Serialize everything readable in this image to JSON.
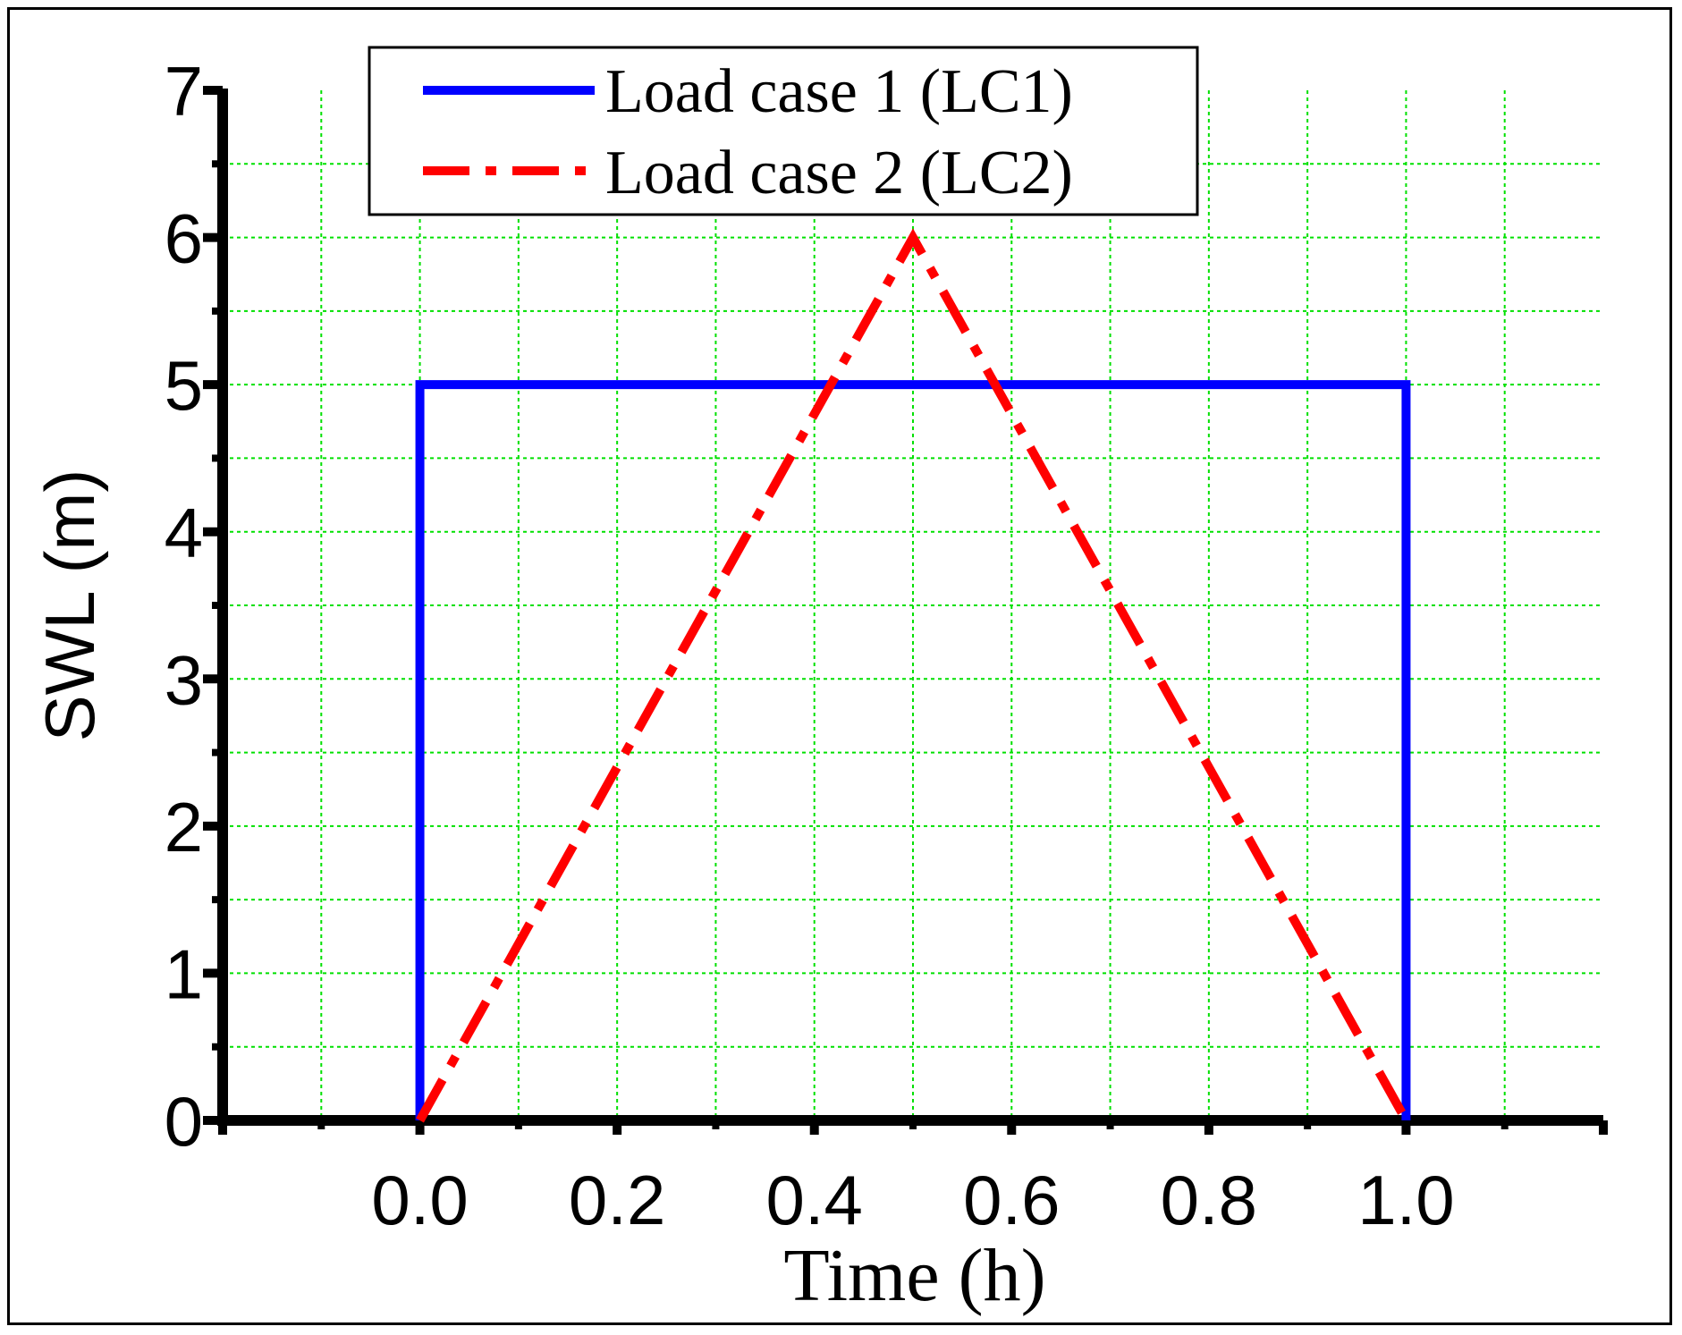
{
  "chart_data": {
    "type": "line",
    "title": "",
    "xlabel": "Time (h)",
    "ylabel": "SWL (m)",
    "xlim": [
      -0.2,
      1.2
    ],
    "ylim": [
      0,
      7
    ],
    "x_ticks": [
      "0.0",
      "0.2",
      "0.4",
      "0.6",
      "0.8",
      "1.0"
    ],
    "y_ticks": [
      "0",
      "1",
      "2",
      "3",
      "4",
      "5",
      "6",
      "7"
    ],
    "grid": true,
    "grid_color": "#00e000",
    "legend_position": "top",
    "series": [
      {
        "name": "Load case 1 (LC1)",
        "color": "#0000ff",
        "style": "solid",
        "x": [
          0.0,
          0.0,
          1.0,
          1.0
        ],
        "y": [
          0,
          5,
          5,
          0
        ]
      },
      {
        "name": "Load case 2 (LC2)",
        "color": "#ff0000",
        "style": "dash-dot",
        "x": [
          0.0,
          0.5,
          1.0
        ],
        "y": [
          0,
          6,
          0
        ]
      }
    ]
  }
}
